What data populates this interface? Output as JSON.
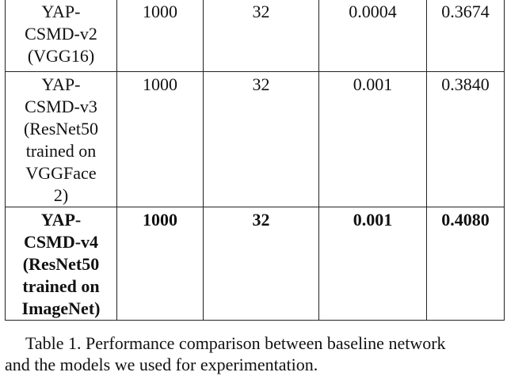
{
  "table": {
    "rows": [
      [
        [
          "YAP-",
          "CSMD-v2",
          "(VGG16)"
        ],
        [
          "1000"
        ],
        [
          "32"
        ],
        [
          "0.0004"
        ],
        [
          "0.3674"
        ]
      ],
      [
        [
          "YAP-",
          "CSMD-v3",
          "(ResNet50",
          "trained on",
          "VGGFace",
          "2)"
        ],
        [
          "1000"
        ],
        [
          "32"
        ],
        [
          "0.001"
        ],
        [
          "0.3840"
        ]
      ],
      [
        [
          "YAP-",
          "CSMD-v4",
          "(ResNet50",
          "trained on",
          "ImageNet)"
        ],
        [
          "1000"
        ],
        [
          "32"
        ],
        [
          "0.001"
        ],
        [
          "0.4080"
        ]
      ]
    ]
  },
  "caption": [
    "Table 1. Performance comparison between baseline network",
    "and the models we used for experimentation."
  ]
}
